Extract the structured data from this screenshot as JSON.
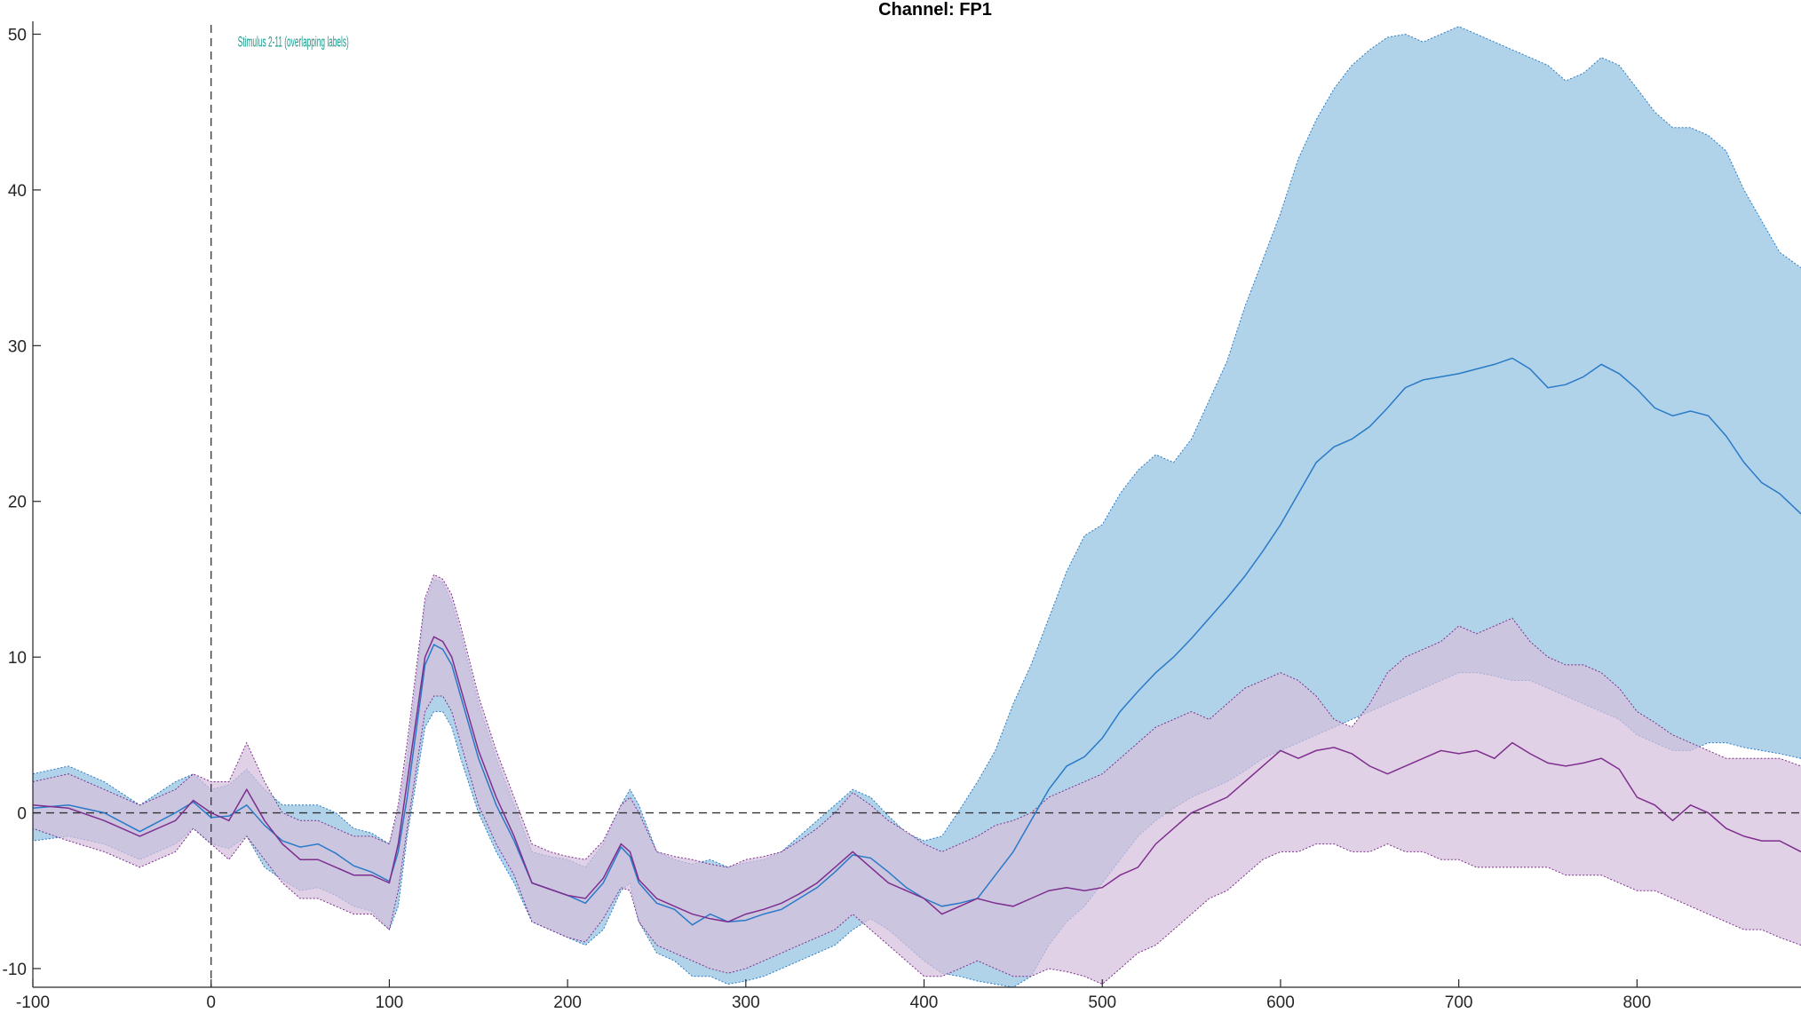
{
  "chart_data": {
    "type": "line",
    "title": "Channel: FP1",
    "xlabel": "",
    "ylabel": "",
    "xlim": [
      -100,
      892
    ],
    "ylim": [
      -11.2,
      50.6
    ],
    "xticks": [
      -100,
      0,
      100,
      200,
      300,
      400,
      500,
      600,
      700,
      800
    ],
    "yticks": [
      -10,
      0,
      10,
      20,
      30,
      40,
      50
    ],
    "grid": false,
    "legend": "none",
    "reference_lines": {
      "x0": 0,
      "y0": 0,
      "style": "dashed"
    },
    "marker_label": "Stimulus 2-11 (overlapping labels)",
    "marker_color": "#1a9a8a",
    "series": [
      {
        "color": "#2a7ac7",
        "band_color": "#b0d3e9",
        "x": [
          -100,
          -80,
          -60,
          -40,
          -20,
          -10,
          0,
          10,
          20,
          30,
          40,
          50,
          60,
          70,
          80,
          90,
          100,
          105,
          110,
          120,
          125,
          130,
          135,
          140,
          150,
          160,
          170,
          180,
          190,
          200,
          210,
          220,
          230,
          235,
          240,
          250,
          260,
          270,
          280,
          290,
          300,
          310,
          320,
          330,
          340,
          350,
          360,
          370,
          380,
          390,
          400,
          410,
          420,
          430,
          440,
          450,
          460,
          470,
          480,
          490,
          500,
          510,
          520,
          530,
          540,
          550,
          560,
          570,
          580,
          590,
          600,
          610,
          620,
          630,
          640,
          650,
          660,
          670,
          680,
          690,
          700,
          710,
          720,
          730,
          740,
          750,
          760,
          770,
          780,
          790,
          800,
          810,
          820,
          830,
          840,
          850,
          860,
          870,
          880,
          892
        ],
        "mean": [
          0.3,
          0.5,
          0.0,
          -1.2,
          0.0,
          0.7,
          -0.3,
          -0.2,
          0.5,
          -0.8,
          -1.8,
          -2.2,
          -2.0,
          -2.6,
          -3.4,
          -3.8,
          -4.4,
          -2.5,
          1.0,
          9.5,
          10.8,
          10.5,
          9.5,
          7.5,
          3.5,
          0.5,
          -1.8,
          -4.5,
          -4.9,
          -5.3,
          -5.8,
          -4.5,
          -2.2,
          -2.8,
          -4.5,
          -5.8,
          -6.2,
          -7.2,
          -6.5,
          -7.0,
          -6.9,
          -6.5,
          -6.2,
          -5.5,
          -4.8,
          -3.8,
          -2.7,
          -2.9,
          -3.8,
          -4.8,
          -5.5,
          -6.0,
          -5.8,
          -5.5,
          -4.0,
          -2.5,
          -0.5,
          1.5,
          3.0,
          3.6,
          4.8,
          6.5,
          7.8,
          9.0,
          10.0,
          11.2,
          12.5,
          13.8,
          15.2,
          16.8,
          18.5,
          20.5,
          22.5,
          23.5,
          24.0,
          24.8,
          26.0,
          27.3,
          27.8,
          28.0,
          28.2,
          28.5,
          28.8,
          29.2,
          28.5,
          27.3,
          27.5,
          28.0,
          28.8,
          28.2,
          27.2,
          26.0,
          25.5,
          25.8,
          25.5,
          24.2,
          22.5,
          21.2,
          20.5,
          19.2
        ],
        "upper": [
          2.5,
          3.0,
          2.0,
          0.5,
          2.0,
          2.5,
          1.5,
          1.8,
          2.8,
          1.5,
          0.5,
          0.5,
          0.5,
          0.0,
          -1.0,
          -1.3,
          -2.0,
          0.0,
          3.5,
          13.5,
          15.0,
          14.8,
          13.5,
          11.5,
          7.0,
          3.5,
          0.5,
          -2.5,
          -2.8,
          -3.0,
          -3.5,
          -2.0,
          0.5,
          1.5,
          0.5,
          -2.5,
          -3.0,
          -3.3,
          -3.0,
          -3.5,
          -3.2,
          -3.0,
          -2.5,
          -1.5,
          -0.5,
          0.5,
          1.5,
          1.0,
          -0.2,
          -1.3,
          -1.8,
          -1.5,
          0.2,
          2.0,
          4.0,
          7.0,
          9.5,
          12.5,
          15.5,
          17.8,
          18.5,
          20.5,
          22.0,
          23.0,
          22.5,
          24.0,
          26.5,
          29.0,
          32.5,
          35.5,
          38.5,
          42.0,
          44.5,
          46.5,
          48.0,
          49.0,
          49.8,
          50.0,
          49.5,
          50.0,
          50.5,
          50.0,
          49.5,
          49.0,
          48.5,
          48.0,
          47.0,
          47.5,
          48.5,
          48.0,
          46.5,
          45.0,
          44.0,
          44.0,
          43.5,
          42.5,
          40.0,
          38.0,
          36.0,
          35.0
        ],
        "lower": [
          -1.8,
          -1.5,
          -2.0,
          -3.0,
          -2.0,
          -1.0,
          -2.0,
          -2.3,
          -1.5,
          -3.5,
          -4.3,
          -5.0,
          -4.8,
          -5.3,
          -6.0,
          -6.3,
          -7.5,
          -6.0,
          -1.5,
          5.5,
          6.5,
          6.5,
          5.5,
          3.5,
          0.0,
          -2.5,
          -4.5,
          -7.0,
          -7.5,
          -8.0,
          -8.5,
          -7.5,
          -5.0,
          -4.5,
          -7.0,
          -9.0,
          -9.5,
          -10.5,
          -10.5,
          -11.0,
          -10.8,
          -10.5,
          -10.0,
          -9.5,
          -9.0,
          -8.5,
          -7.5,
          -6.8,
          -7.5,
          -8.5,
          -9.5,
          -10.3,
          -10.5,
          -10.8,
          -11.0,
          -11.2,
          -10.5,
          -8.5,
          -7.0,
          -6.0,
          -4.5,
          -3.0,
          -1.5,
          -0.5,
          0.3,
          1.0,
          1.5,
          2.0,
          2.7,
          3.5,
          4.0,
          4.5,
          5.0,
          5.5,
          6.0,
          6.5,
          7.0,
          7.5,
          8.0,
          8.5,
          9.0,
          9.0,
          8.8,
          8.5,
          8.5,
          8.0,
          7.5,
          7.0,
          6.5,
          6.0,
          5.0,
          4.5,
          4.0,
          4.0,
          4.5,
          4.5,
          4.2,
          4.0,
          3.8,
          3.5
        ]
      },
      {
        "color": "#7e2f8e",
        "band_color": "#d6bfdc",
        "x": [
          -100,
          -80,
          -60,
          -40,
          -20,
          -10,
          0,
          10,
          20,
          30,
          40,
          50,
          60,
          70,
          80,
          90,
          100,
          105,
          110,
          120,
          125,
          130,
          135,
          140,
          150,
          160,
          170,
          180,
          190,
          200,
          210,
          220,
          230,
          235,
          240,
          250,
          260,
          270,
          280,
          290,
          300,
          310,
          320,
          330,
          340,
          350,
          360,
          370,
          380,
          390,
          400,
          410,
          420,
          430,
          440,
          450,
          460,
          470,
          480,
          490,
          500,
          510,
          520,
          530,
          540,
          550,
          560,
          570,
          580,
          590,
          600,
          610,
          620,
          630,
          640,
          650,
          660,
          670,
          680,
          690,
          700,
          710,
          720,
          730,
          740,
          750,
          760,
          770,
          780,
          790,
          800,
          810,
          820,
          830,
          840,
          850,
          860,
          870,
          880,
          892
        ],
        "mean": [
          0.5,
          0.3,
          -0.5,
          -1.5,
          -0.5,
          0.8,
          0.0,
          -0.5,
          1.5,
          -0.5,
          -2.0,
          -3.0,
          -3.0,
          -3.5,
          -4.0,
          -4.0,
          -4.5,
          -2.0,
          2.0,
          10.0,
          11.3,
          11.0,
          10.0,
          8.0,
          4.0,
          1.0,
          -1.5,
          -4.5,
          -4.9,
          -5.3,
          -5.5,
          -4.2,
          -2.0,
          -2.5,
          -4.3,
          -5.5,
          -6.0,
          -6.5,
          -6.8,
          -7.0,
          -6.5,
          -6.2,
          -5.8,
          -5.2,
          -4.5,
          -3.5,
          -2.5,
          -3.5,
          -4.5,
          -5.0,
          -5.5,
          -6.5,
          -6.0,
          -5.5,
          -5.8,
          -6.0,
          -5.5,
          -5.0,
          -4.8,
          -5.0,
          -4.8,
          -4.0,
          -3.5,
          -2.0,
          -1.0,
          0.0,
          0.5,
          1.0,
          2.0,
          3.0,
          4.0,
          3.5,
          4.0,
          4.2,
          3.8,
          3.0,
          2.5,
          3.0,
          3.5,
          4.0,
          3.8,
          4.0,
          3.5,
          4.5,
          3.8,
          3.2,
          3.0,
          3.2,
          3.5,
          2.8,
          1.0,
          0.5,
          -0.5,
          0.5,
          0.0,
          -1.0,
          -1.5,
          -1.8,
          -1.8,
          -2.5
        ],
        "upper": [
          2.0,
          2.5,
          1.5,
          0.5,
          1.5,
          2.5,
          2.0,
          2.0,
          4.5,
          2.0,
          0.0,
          -0.5,
          -0.5,
          -1.0,
          -1.5,
          -1.5,
          -2.0,
          0.5,
          4.5,
          13.8,
          15.3,
          15.0,
          14.0,
          12.0,
          7.5,
          4.0,
          1.0,
          -2.0,
          -2.5,
          -2.8,
          -3.0,
          -1.8,
          0.5,
          1.0,
          0.0,
          -2.5,
          -2.8,
          -3.0,
          -3.3,
          -3.5,
          -3.0,
          -2.8,
          -2.5,
          -1.8,
          -1.0,
          0.0,
          1.3,
          0.5,
          -0.5,
          -1.2,
          -2.0,
          -2.5,
          -2.0,
          -1.5,
          -0.8,
          -0.5,
          0.0,
          1.0,
          1.5,
          2.0,
          2.5,
          3.5,
          4.5,
          5.5,
          6.0,
          6.5,
          6.0,
          7.0,
          8.0,
          8.5,
          9.0,
          8.5,
          7.5,
          6.0,
          5.5,
          7.0,
          9.0,
          10.0,
          10.5,
          11.0,
          12.0,
          11.5,
          12.0,
          12.5,
          11.0,
          10.0,
          9.5,
          9.5,
          9.0,
          8.0,
          6.5,
          5.8,
          5.0,
          4.5,
          4.0,
          3.5,
          3.5,
          3.5,
          3.5,
          3.0
        ],
        "lower": [
          -1.0,
          -1.8,
          -2.5,
          -3.5,
          -2.5,
          -1.0,
          -2.0,
          -3.0,
          -1.5,
          -3.0,
          -4.5,
          -5.5,
          -5.5,
          -6.0,
          -6.5,
          -6.5,
          -7.5,
          -5.0,
          -1.0,
          6.5,
          7.5,
          7.5,
          6.5,
          4.5,
          0.5,
          -2.0,
          -4.0,
          -7.0,
          -7.5,
          -8.0,
          -8.3,
          -6.8,
          -4.8,
          -5.0,
          -7.0,
          -8.5,
          -9.0,
          -9.5,
          -10.0,
          -10.3,
          -10.0,
          -9.5,
          -9.0,
          -8.5,
          -8.0,
          -7.5,
          -6.5,
          -7.5,
          -8.5,
          -9.5,
          -10.5,
          -10.5,
          -10.0,
          -9.5,
          -10.0,
          -10.5,
          -10.5,
          -10.0,
          -10.2,
          -10.5,
          -11.0,
          -10.0,
          -9.0,
          -8.5,
          -7.5,
          -6.5,
          -5.5,
          -5.0,
          -4.0,
          -3.0,
          -2.5,
          -2.5,
          -2.0,
          -2.0,
          -2.5,
          -2.5,
          -2.0,
          -2.5,
          -2.5,
          -3.0,
          -3.0,
          -3.5,
          -3.5,
          -3.5,
          -3.5,
          -3.5,
          -4.0,
          -4.0,
          -4.0,
          -4.5,
          -5.0,
          -5.0,
          -5.5,
          -6.0,
          -6.5,
          -7.0,
          -7.5,
          -7.5,
          -8.0,
          -8.5
        ]
      }
    ]
  }
}
